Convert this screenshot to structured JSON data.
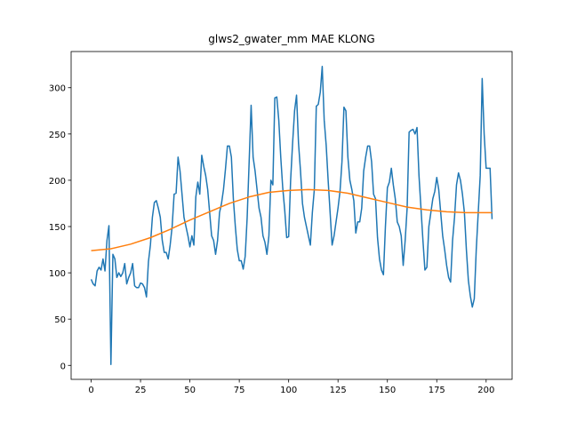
{
  "chart_data": {
    "type": "line",
    "title": "glws2_gwater_mm MAE KLONG",
    "xlim": [
      -10.15,
      213.15
    ],
    "ylim": [
      -15.1,
      339.1
    ],
    "xticks": [
      0,
      25,
      50,
      75,
      100,
      125,
      150,
      175,
      200
    ],
    "yticks": [
      0,
      50,
      100,
      150,
      200,
      250,
      300
    ],
    "grid": false,
    "series": [
      {
        "color": "#1f77b4",
        "x": [
          0,
          1,
          2,
          3,
          4,
          5,
          6,
          7,
          8,
          9,
          10,
          11,
          12,
          13,
          14,
          15,
          16,
          17,
          18,
          19,
          20,
          21,
          22,
          23,
          24,
          25,
          26,
          27,
          28,
          29,
          30,
          31,
          32,
          33,
          34,
          35,
          36,
          37,
          38,
          39,
          40,
          41,
          42,
          43,
          44,
          45,
          46,
          47,
          48,
          49,
          50,
          51,
          52,
          53,
          54,
          55,
          56,
          57,
          58,
          59,
          60,
          61,
          62,
          63,
          64,
          65,
          66,
          67,
          68,
          69,
          70,
          71,
          72,
          73,
          74,
          75,
          76,
          77,
          78,
          79,
          80,
          81,
          82,
          83,
          84,
          85,
          86,
          87,
          88,
          89,
          90,
          91,
          92,
          93,
          94,
          95,
          96,
          97,
          98,
          99,
          100,
          101,
          102,
          103,
          104,
          105,
          106,
          107,
          108,
          109,
          110,
          111,
          112,
          113,
          114,
          115,
          116,
          117,
          118,
          119,
          120,
          121,
          122,
          123,
          124,
          125,
          126,
          127,
          128,
          129,
          130,
          131,
          132,
          133,
          134,
          135,
          136,
          137,
          138,
          139,
          140,
          141,
          142,
          143,
          144,
          145,
          146,
          147,
          148,
          149,
          150,
          151,
          152,
          153,
          154,
          155,
          156,
          157,
          158,
          159,
          160,
          161,
          162,
          163,
          164,
          165,
          166,
          167,
          168,
          169,
          170,
          171,
          172,
          173,
          174,
          175,
          176,
          177,
          178,
          179,
          180,
          181,
          182,
          183,
          184,
          185,
          186,
          187,
          188,
          189,
          190,
          191,
          192,
          193,
          194,
          195,
          196,
          197,
          198,
          199,
          200,
          201,
          202,
          203
        ],
        "values": [
          93,
          88,
          86,
          102,
          106,
          103,
          115,
          102,
          135,
          151,
          1,
          120,
          115,
          95,
          100,
          96,
          100,
          110,
          88,
          95,
          100,
          110,
          86,
          84,
          84,
          89,
          88,
          84,
          74,
          112,
          130,
          160,
          176,
          178,
          170,
          160,
          135,
          122,
          122,
          115,
          130,
          150,
          185,
          186,
          225,
          210,
          185,
          160,
          150,
          140,
          128,
          140,
          130,
          182,
          198,
          185,
          227,
          215,
          205,
          190,
          165,
          140,
          135,
          120,
          135,
          165,
          175,
          190,
          212,
          237,
          237,
          225,
          180,
          150,
          125,
          113,
          113,
          104,
          118,
          160,
          220,
          281,
          225,
          210,
          190,
          170,
          160,
          140,
          133,
          120,
          140,
          200,
          195,
          289,
          290,
          265,
          225,
          192,
          168,
          138,
          139,
          200,
          240,
          275,
          292,
          240,
          210,
          175,
          160,
          150,
          140,
          130,
          165,
          190,
          280,
          282,
          295,
          323,
          265,
          238,
          200,
          165,
          130,
          140,
          155,
          170,
          188,
          220,
          279,
          275,
          225,
          200,
          190,
          178,
          143,
          155,
          155,
          170,
          210,
          225,
          237,
          237,
          220,
          185,
          180,
          138,
          115,
          103,
          98,
          150,
          192,
          198,
          213,
          195,
          180,
          155,
          150,
          140,
          108,
          135,
          170,
          252,
          254,
          255,
          250,
          257,
          205,
          170,
          135,
          103,
          106,
          150,
          165,
          180,
          188,
          203,
          190,
          165,
          140,
          125,
          108,
          95,
          90,
          135,
          160,
          195,
          208,
          200,
          185,
          165,
          125,
          92,
          75,
          63,
          72,
          125,
          165,
          205,
          310,
          250,
          213,
          213,
          213,
          158
        ]
      },
      {
        "color": "#ff7f0e",
        "x": [
          0,
          10,
          20,
          30,
          40,
          50,
          60,
          70,
          80,
          90,
          100,
          110,
          120,
          130,
          140,
          150,
          160,
          170,
          180,
          190,
          200,
          203
        ],
        "values": [
          124,
          126,
          131,
          138,
          147,
          157,
          166,
          175,
          182,
          187,
          189,
          190,
          189,
          186,
          181,
          176,
          171,
          168,
          166,
          165,
          165,
          165
        ]
      }
    ]
  }
}
